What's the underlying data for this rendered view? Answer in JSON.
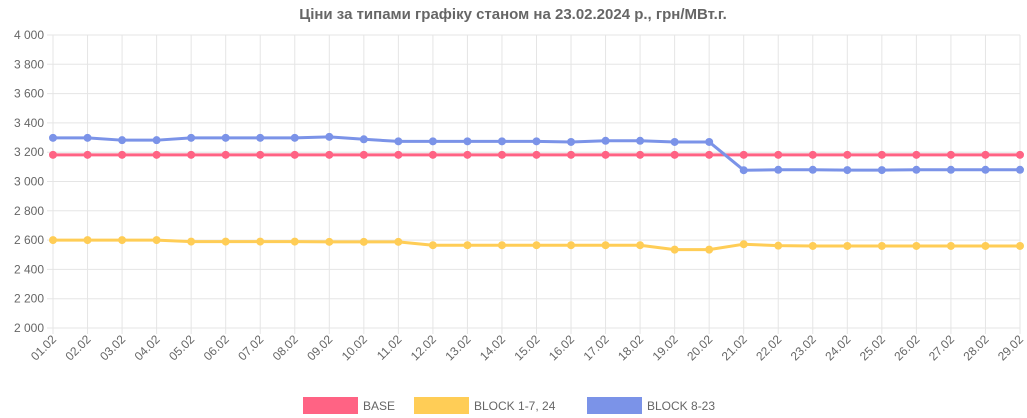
{
  "chart_data": {
    "type": "line",
    "title": "Ціни за типами графіку станом на 23.02.2024 р., грн/МВт.г.",
    "xlabel": "",
    "ylabel": "",
    "ylim": [
      2000,
      4000
    ],
    "y_ticks": [
      2000,
      2200,
      2400,
      2600,
      2800,
      3000,
      3200,
      3400,
      3600,
      3800,
      4000
    ],
    "y_tick_labels": [
      "2 000",
      "2 200",
      "2 400",
      "2 600",
      "2 800",
      "3 000",
      "3 200",
      "3 400",
      "3 600",
      "3 800",
      "4 000"
    ],
    "grid": true,
    "legend_position": "bottom",
    "categories": [
      "01.02",
      "02.02",
      "03.02",
      "04.02",
      "05.02",
      "06.02",
      "07.02",
      "08.02",
      "09.02",
      "10.02",
      "11.02",
      "12.02",
      "13.02",
      "14.02",
      "15.02",
      "16.02",
      "17.02",
      "18.02",
      "19.02",
      "20.02",
      "21.02",
      "22.02",
      "23.02",
      "24.02",
      "25.02",
      "26.02",
      "27.02",
      "28.02",
      "29.02"
    ],
    "series": [
      {
        "name": "BASE",
        "color": "#ff6384",
        "values": [
          3182,
          3182,
          3182,
          3182,
          3182,
          3182,
          3182,
          3182,
          3182,
          3182,
          3182,
          3182,
          3182,
          3182,
          3182,
          3182,
          3182,
          3182,
          3182,
          3182,
          3182,
          3182,
          3182,
          3182,
          3182,
          3182,
          3182,
          3182,
          3182
        ]
      },
      {
        "name": "BLOCK 1-7, 24",
        "color": "#ffcd56",
        "values": [
          2600,
          2600,
          2600,
          2600,
          2590,
          2590,
          2590,
          2590,
          2588,
          2588,
          2588,
          2565,
          2565,
          2565,
          2565,
          2565,
          2565,
          2565,
          2535,
          2535,
          2572,
          2562,
          2560,
          2560,
          2560,
          2560,
          2560,
          2560,
          2560
        ]
      },
      {
        "name": "BLOCK 8-23",
        "color": "#7b93e8",
        "values": [
          3298,
          3298,
          3282,
          3282,
          3298,
          3298,
          3298,
          3298,
          3305,
          3288,
          3274,
          3274,
          3274,
          3274,
          3274,
          3270,
          3278,
          3278,
          3270,
          3270,
          3077,
          3080,
          3080,
          3078,
          3078,
          3080,
          3080,
          3080,
          3080
        ]
      }
    ]
  }
}
